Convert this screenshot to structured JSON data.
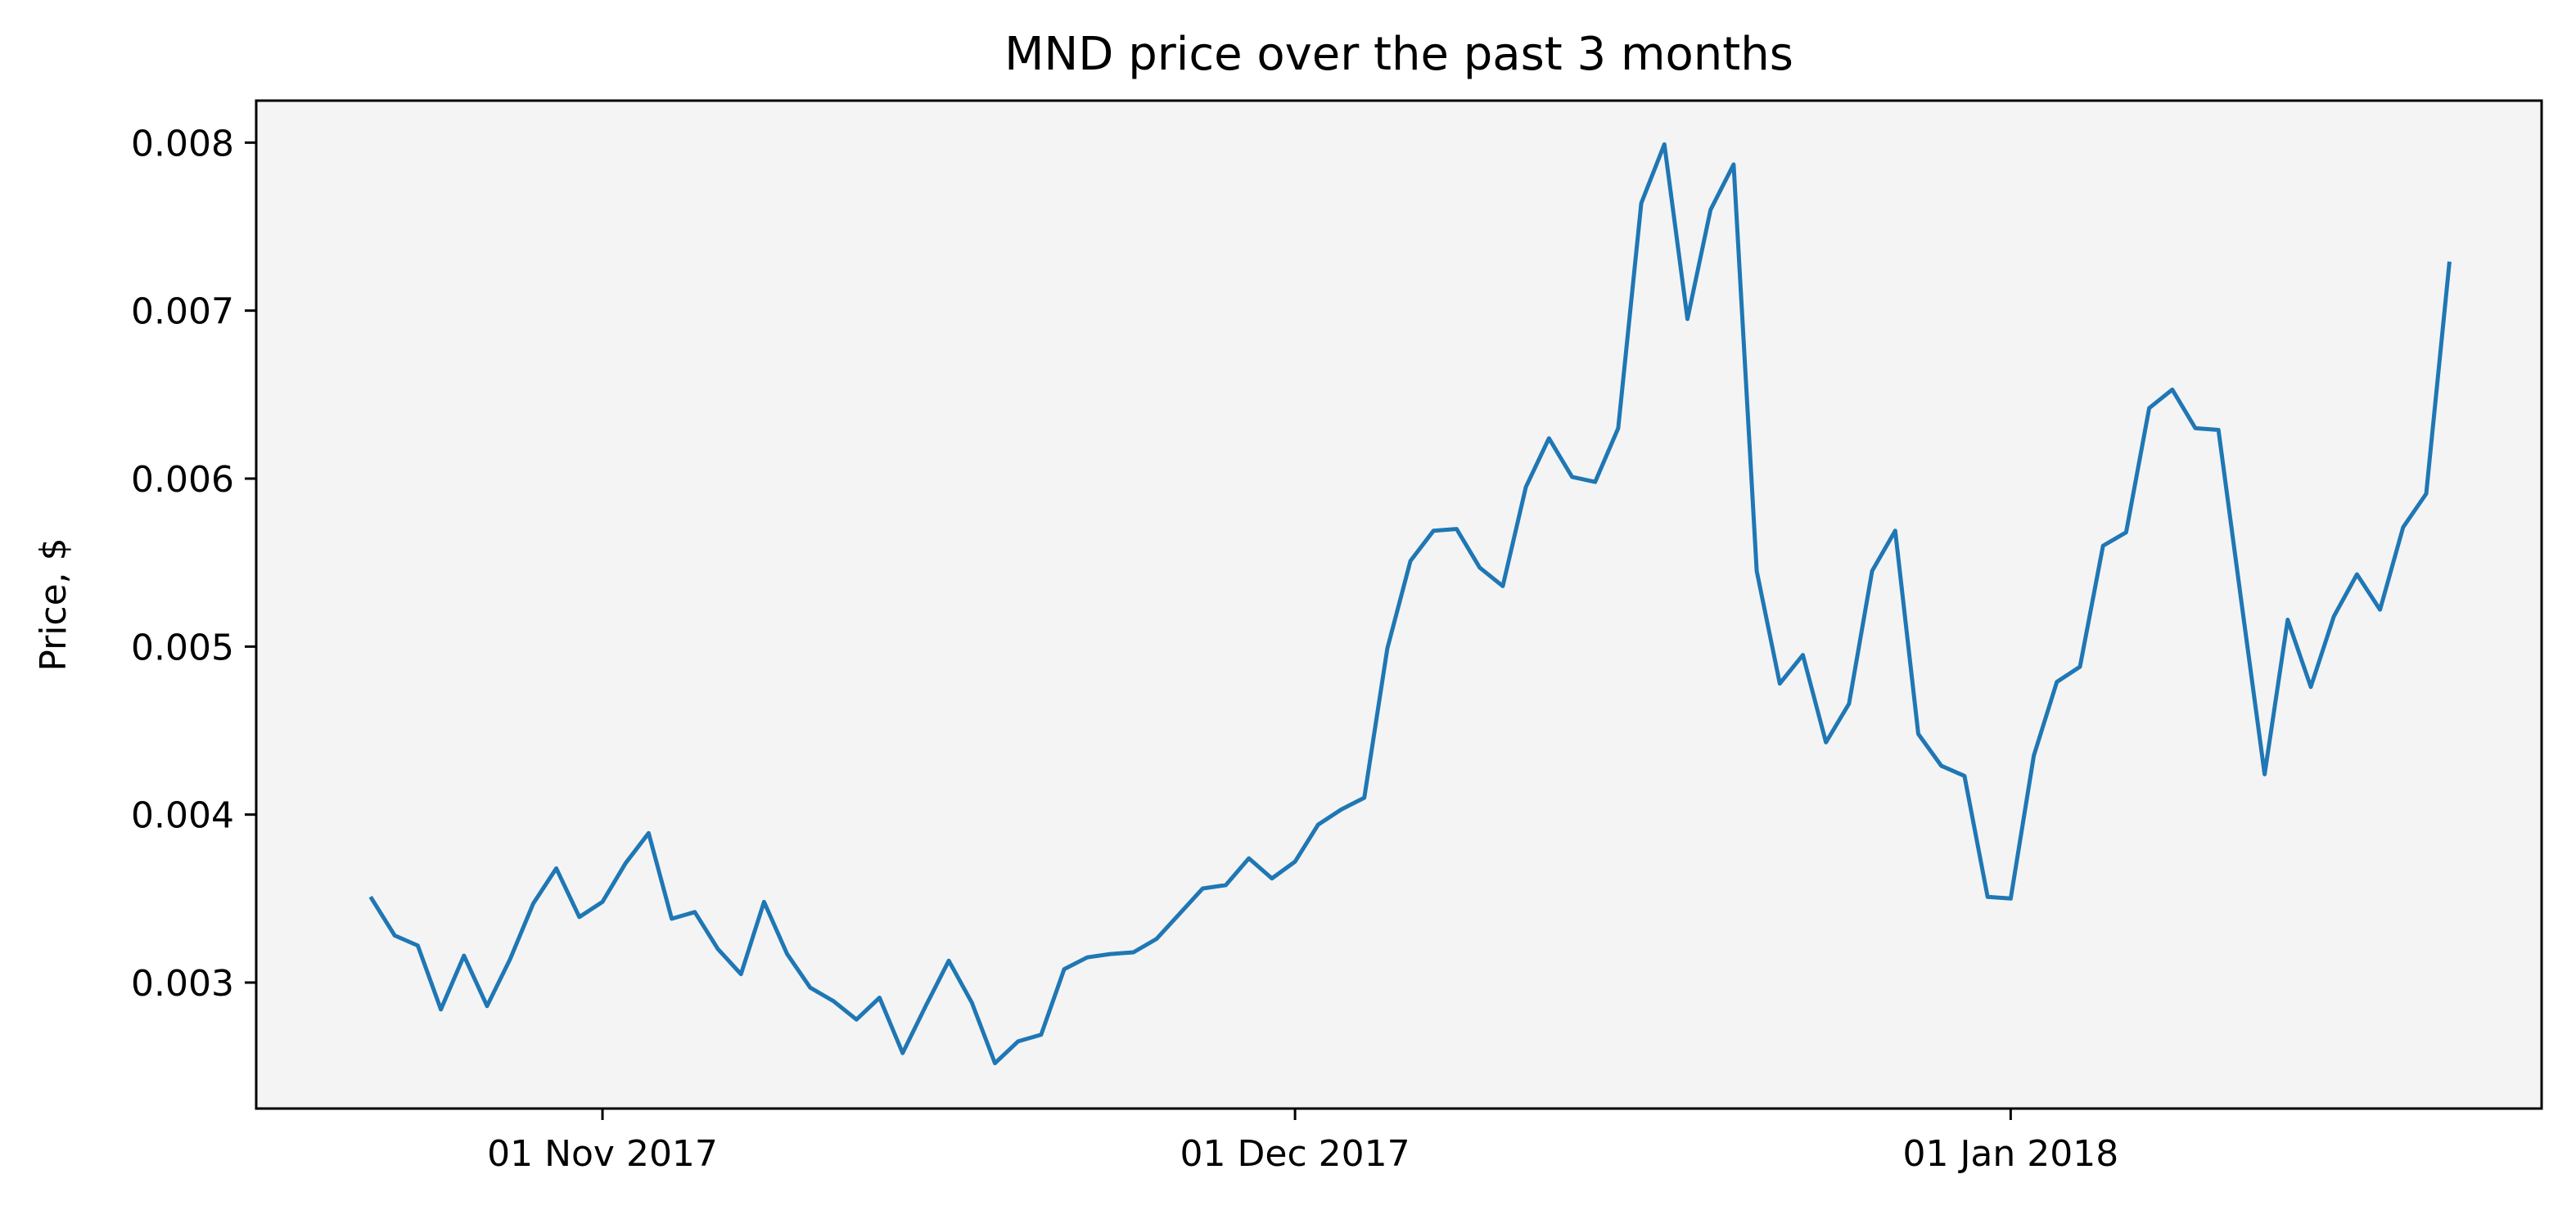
{
  "chart_data": {
    "type": "line",
    "title": "MND price over the past 3 months",
    "xlabel": "",
    "ylabel": "Price, $",
    "x_ticks": [
      {
        "date": "2017-11-01",
        "label": "01 Nov 2017"
      },
      {
        "date": "2017-12-01",
        "label": "01 Dec 2017"
      },
      {
        "date": "2018-01-01",
        "label": "01 Jan 2018"
      }
    ],
    "y_ticks": [
      {
        "value": 0.003,
        "label": "0.003"
      },
      {
        "value": 0.004,
        "label": "0.004"
      },
      {
        "value": 0.005,
        "label": "0.005"
      },
      {
        "value": 0.006,
        "label": "0.006"
      },
      {
        "value": 0.007,
        "label": "0.007"
      },
      {
        "value": 0.008,
        "label": "0.008"
      }
    ],
    "xlim": [
      "2017-10-17",
      "2018-01-24"
    ],
    "ylim": [
      0.00225,
      0.00825
    ],
    "grid": false,
    "plot_background": "#f4f4f4",
    "line_color": "#1f77b4",
    "series": [
      {
        "x": [
          "2017-10-22",
          "2017-10-23",
          "2017-10-24",
          "2017-10-25",
          "2017-10-26",
          "2017-10-27",
          "2017-10-28",
          "2017-10-29",
          "2017-10-30",
          "2017-10-31",
          "2017-11-01",
          "2017-11-02",
          "2017-11-03",
          "2017-11-04",
          "2017-11-05",
          "2017-11-06",
          "2017-11-07",
          "2017-11-08",
          "2017-11-09",
          "2017-11-10",
          "2017-11-11",
          "2017-11-12",
          "2017-11-13",
          "2017-11-14",
          "2017-11-15",
          "2017-11-16",
          "2017-11-17",
          "2017-11-18",
          "2017-11-19",
          "2017-11-20",
          "2017-11-21",
          "2017-11-22",
          "2017-11-23",
          "2017-11-24",
          "2017-11-25",
          "2017-11-26",
          "2017-11-27",
          "2017-11-28",
          "2017-11-29",
          "2017-11-30",
          "2017-12-01",
          "2017-12-02",
          "2017-12-03",
          "2017-12-04",
          "2017-12-05",
          "2017-12-06",
          "2017-12-07",
          "2017-12-08",
          "2017-12-09",
          "2017-12-10",
          "2017-12-11",
          "2017-12-12",
          "2017-12-13",
          "2017-12-14",
          "2017-12-15",
          "2017-12-16",
          "2017-12-17",
          "2017-12-18",
          "2017-12-19",
          "2017-12-20",
          "2017-12-21",
          "2017-12-22",
          "2017-12-23",
          "2017-12-24",
          "2017-12-25",
          "2017-12-26",
          "2017-12-27",
          "2017-12-28",
          "2017-12-29",
          "2017-12-30",
          "2017-12-31",
          "2018-01-01",
          "2018-01-02",
          "2018-01-03",
          "2018-01-04",
          "2018-01-05",
          "2018-01-06",
          "2018-01-07",
          "2018-01-08",
          "2018-01-09",
          "2018-01-10",
          "2018-01-11",
          "2018-01-12",
          "2018-01-13",
          "2018-01-14",
          "2018-01-15",
          "2018-01-16",
          "2018-01-17",
          "2018-01-18",
          "2018-01-19",
          "2018-01-20"
        ],
        "values": [
          0.0035,
          0.00328,
          0.00322,
          0.00284,
          0.00316,
          0.00286,
          0.00314,
          0.00347,
          0.00368,
          0.00339,
          0.00348,
          0.00371,
          0.00389,
          0.00338,
          0.00342,
          0.0032,
          0.00305,
          0.00348,
          0.00317,
          0.00297,
          0.00289,
          0.00278,
          0.00291,
          0.00258,
          0.00286,
          0.00313,
          0.00288,
          0.00252,
          0.00265,
          0.00269,
          0.00308,
          0.00315,
          0.00317,
          0.00318,
          0.00326,
          0.00341,
          0.00356,
          0.00358,
          0.00374,
          0.00362,
          0.00372,
          0.00394,
          0.00403,
          0.0041,
          0.00499,
          0.00551,
          0.00569,
          0.0057,
          0.00547,
          0.00536,
          0.00595,
          0.00624,
          0.00601,
          0.00598,
          0.0063,
          0.00764,
          0.00799,
          0.00695,
          0.0076,
          0.00787,
          0.00545,
          0.00478,
          0.00495,
          0.00443,
          0.00466,
          0.00545,
          0.00569,
          0.00448,
          0.00429,
          0.00423,
          0.00351,
          0.0035,
          0.00435,
          0.00479,
          0.00488,
          0.0056,
          0.00568,
          0.00642,
          0.00653,
          0.0063,
          0.00629,
          0.00526,
          0.00424,
          0.00516,
          0.00476,
          0.00518,
          0.00543,
          0.00522,
          0.00571,
          0.00591,
          0.00728
        ]
      }
    ]
  }
}
